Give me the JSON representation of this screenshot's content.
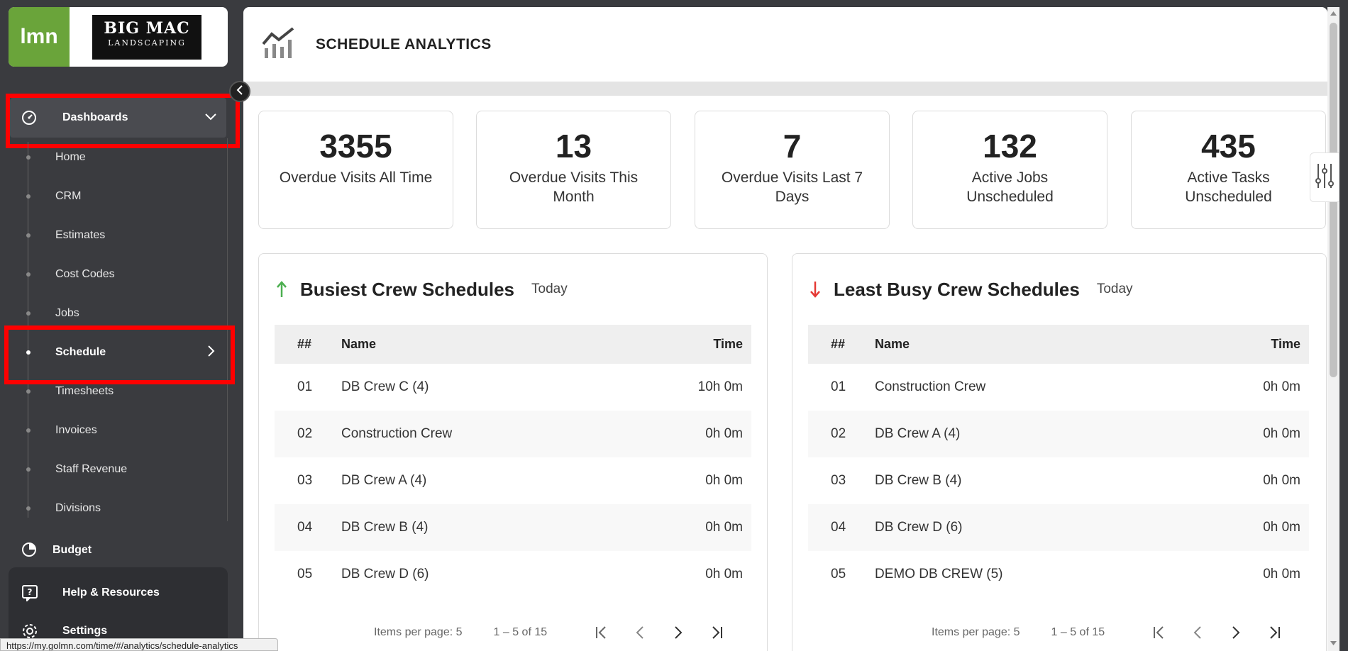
{
  "brand": {
    "lmn_logo_text": "lmn",
    "company_logo_line1": "BIG MAC",
    "company_logo_line2": "LANDSCAPING"
  },
  "sidebar": {
    "dashboards_label": "Dashboards",
    "items": [
      {
        "label": "Home"
      },
      {
        "label": "CRM"
      },
      {
        "label": "Estimates"
      },
      {
        "label": "Cost Codes"
      },
      {
        "label": "Jobs"
      },
      {
        "label": "Schedule"
      },
      {
        "label": "Timesheets"
      },
      {
        "label": "Invoices"
      },
      {
        "label": "Staff Revenue"
      },
      {
        "label": "Divisions"
      }
    ],
    "budget_label": "Budget",
    "help_label": "Help & Resources",
    "settings_label": "Settings"
  },
  "page": {
    "title": "SCHEDULE ANALYTICS"
  },
  "stats": [
    {
      "value": "3355",
      "caption": "Overdue Visits All Time"
    },
    {
      "value": "13",
      "caption": "Overdue Visits This Month"
    },
    {
      "value": "7",
      "caption": "Overdue Visits Last 7 Days"
    },
    {
      "value": "132",
      "caption": "Active Jobs Unscheduled"
    },
    {
      "value": "435",
      "caption": "Active Tasks Unscheduled"
    }
  ],
  "busiest": {
    "title": "Busiest Crew Schedules",
    "period": "Today",
    "headers": {
      "num": "##",
      "name": "Name",
      "time": "Time"
    },
    "rows": [
      {
        "num": "01",
        "name": "DB Crew C (4)",
        "time": "10h 0m"
      },
      {
        "num": "02",
        "name": "Construction Crew",
        "time": "0h 0m"
      },
      {
        "num": "03",
        "name": "DB Crew A (4)",
        "time": "0h 0m"
      },
      {
        "num": "04",
        "name": "DB Crew B (4)",
        "time": "0h 0m"
      },
      {
        "num": "05",
        "name": "DB Crew D (6)",
        "time": "0h 0m"
      }
    ],
    "pager": {
      "items_per_page": "Items per page: 5",
      "range": "1 – 5 of 15"
    }
  },
  "least_busy": {
    "title": "Least Busy Crew Schedules",
    "period": "Today",
    "headers": {
      "num": "##",
      "name": "Name",
      "time": "Time"
    },
    "rows": [
      {
        "num": "01",
        "name": "Construction Crew",
        "time": "0h 0m"
      },
      {
        "num": "02",
        "name": "DB Crew A (4)",
        "time": "0h 0m"
      },
      {
        "num": "03",
        "name": "DB Crew B (4)",
        "time": "0h 0m"
      },
      {
        "num": "04",
        "name": "DB Crew D (6)",
        "time": "0h 0m"
      },
      {
        "num": "05",
        "name": "DEMO DB CREW (5)",
        "time": "0h 0m"
      }
    ],
    "pager": {
      "items_per_page": "Items per page: 5",
      "range": "1 – 5 of 15"
    }
  },
  "status_bar": {
    "url": "https://my.golmn.com/time/#/analytics/schedule-analytics"
  },
  "colors": {
    "brand_green": "#6aa43a",
    "highlight_red": "#ff0000",
    "up_arrow": "#4caf50",
    "down_arrow": "#e53935"
  }
}
